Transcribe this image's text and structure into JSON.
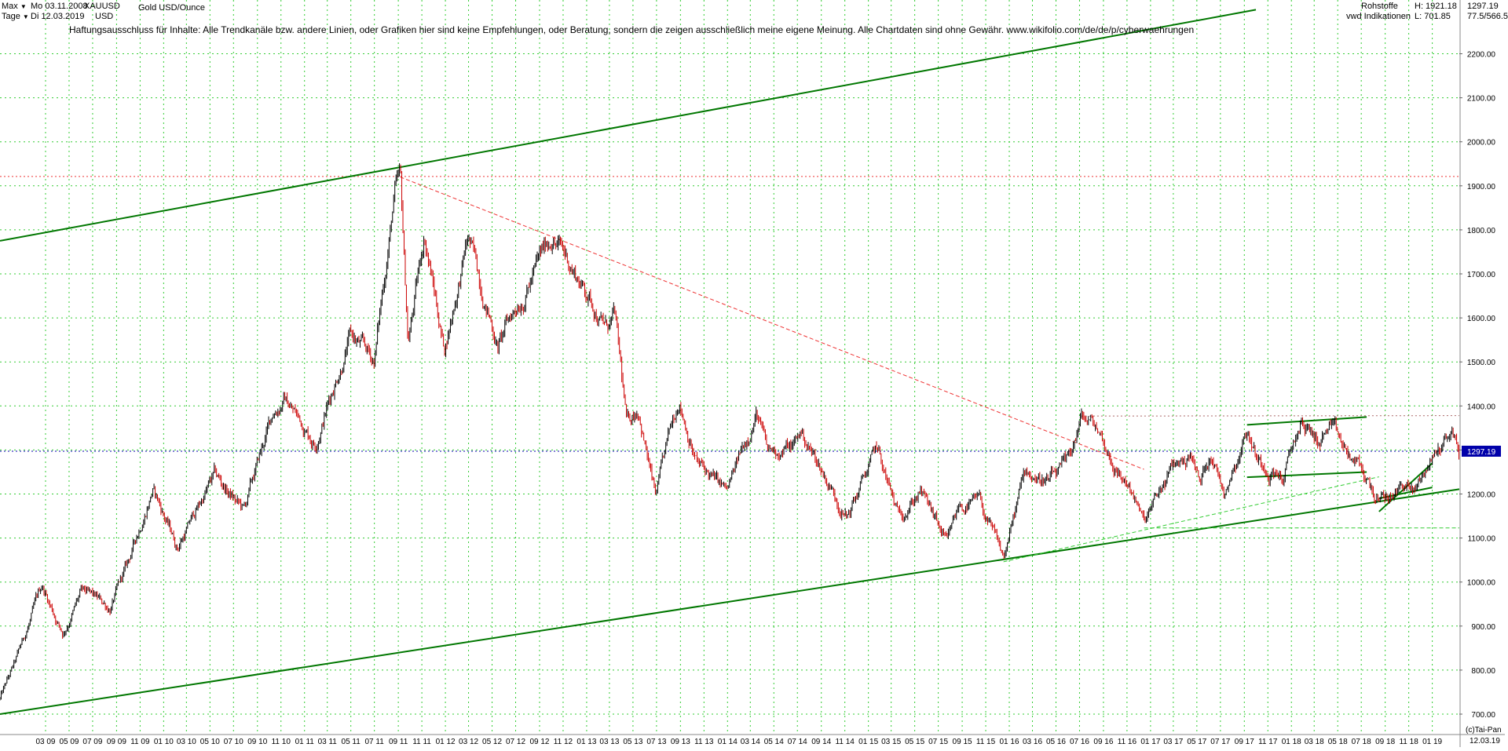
{
  "header": {
    "range_mode": "Max",
    "interval_mode": "Tage",
    "date_from": "Mo 03.11.2008",
    "date_to": "Di 12.03.2019",
    "symbol": "XAUUSD",
    "currency": "USD",
    "instrument": "Gold USD/Ounce",
    "category": "Rohstoffe",
    "source": "vwd Indikationen",
    "high_label": "H: 1921.18",
    "low_label": "L: 701.85",
    "last_value": "1297.19",
    "range_info": "77.5/566.5"
  },
  "disclaimer": "Haftungsausschluss für Inhalte: Alle Trendkanäle bzw. andere Linien, oder Grafiken hier sind keine Empfehlungen, oder Beratung, sondern die zeigen ausschließlich meine eigene Meinung. Alle Chartdaten sind ohne Gewähr.  www.wikifolio.com/de/de/p/cyberwaehrungen",
  "footer": {
    "copyright": "(c)Tai-Pan",
    "last_date": "12.03.19"
  },
  "colors": {
    "up": "#000000",
    "down": "#cc0000",
    "grid": "#33cc33",
    "trend": "#007700",
    "support": "#33cc33",
    "resistance_red": "#ee3333",
    "current_line": "#0000aa",
    "price_tag_bg": "#0000aa"
  },
  "chart_data": {
    "type": "line",
    "title": "Gold USD/Ounce",
    "ylabel": "USD",
    "xlabel": "",
    "ylim": [
      690,
      2300
    ],
    "y_ticks": [
      "700.00",
      "800.00",
      "900.00",
      "1000.00",
      "1100.00",
      "1200.00",
      "1300.00",
      "1400.00",
      "1500.00",
      "1600.00",
      "1700.00",
      "1800.00",
      "1900.00",
      "2000.00",
      "2100.00",
      "2200.00"
    ],
    "x_ticks": [
      "03 09",
      "05 09",
      "07 09",
      "09 09",
      "11 09",
      "01 10",
      "03 10",
      "05 10",
      "07 10",
      "09 10",
      "11 10",
      "01 11",
      "03 11",
      "05 11",
      "07 11",
      "09 11",
      "11 11",
      "01 12",
      "03 12",
      "05 12",
      "07 12",
      "09 12",
      "11 12",
      "01 13",
      "03 13",
      "05 13",
      "07 13",
      "09 13",
      "11 13",
      "01 14",
      "03 14",
      "05 14",
      "07 14",
      "09 14",
      "11 14",
      "01 15",
      "03 15",
      "05 15",
      "07 15",
      "09 15",
      "11 15",
      "01 16",
      "03 16",
      "05 16",
      "07 16",
      "09 16",
      "11 16",
      "01 17",
      "03 17",
      "05 17",
      "07 17",
      "09 17",
      "11 17",
      "01 18",
      "03 18",
      "05 18",
      "07 18",
      "09 18",
      "11 18",
      "01 19"
    ],
    "grid": true,
    "series": [
      {
        "name": "XAUUSD",
        "x": [
          "2008-11-03",
          "2008-12-15",
          "2009-02-20",
          "2009-04-15",
          "2009-06-01",
          "2009-08-15",
          "2009-10-01",
          "2009-12-03",
          "2010-02-05",
          "2010-05-12",
          "2010-07-28",
          "2010-10-10",
          "2010-11-09",
          "2011-01-28",
          "2011-04-29",
          "2011-06-30",
          "2011-08-22",
          "2011-09-06",
          "2011-09-26",
          "2011-11-08",
          "2011-12-29",
          "2012-02-29",
          "2012-05-16",
          "2012-06-29",
          "2012-10-05",
          "2012-12-31",
          "2013-02-20",
          "2013-03-15",
          "2013-04-15",
          "2013-05-15",
          "2013-06-28",
          "2013-08-28",
          "2013-10-15",
          "2013-12-31",
          "2014-03-17",
          "2014-04-15",
          "2014-06-20",
          "2014-07-10",
          "2014-09-30",
          "2014-11-07",
          "2015-01-22",
          "2015-03-17",
          "2015-05-15",
          "2015-07-24",
          "2015-08-24",
          "2015-10-15",
          "2015-12-17",
          "2016-02-11",
          "2016-04-15",
          "2016-05-30",
          "2016-07-06",
          "2016-08-15",
          "2016-10-07",
          "2016-11-15",
          "2016-12-15",
          "2017-02-28",
          "2017-04-17",
          "2017-05-09",
          "2017-06-06",
          "2017-07-10",
          "2017-09-08",
          "2017-10-06",
          "2017-12-12",
          "2018-01-25",
          "2018-03-12",
          "2018-04-11",
          "2018-05-21",
          "2018-07-03",
          "2018-08-16",
          "2018-09-28",
          "2018-10-26",
          "2018-11-13",
          "2018-12-31",
          "2019-01-31",
          "2019-02-20",
          "2019-03-12"
        ],
        "values": [
          735,
          820,
          990,
          885,
          975,
          940,
          1040,
          1215,
          1080,
          1240,
          1160,
          1380,
          1420,
          1320,
          1560,
          1500,
          1880,
          1910,
          1540,
          1790,
          1530,
          1780,
          1540,
          1620,
          1790,
          1660,
          1580,
          1600,
          1350,
          1400,
          1190,
          1420,
          1270,
          1200,
          1390,
          1290,
          1310,
          1340,
          1210,
          1150,
          1300,
          1150,
          1210,
          1080,
          1170,
          1180,
          1050,
          1250,
          1230,
          1260,
          1370,
          1350,
          1250,
          1210,
          1130,
          1260,
          1290,
          1220,
          1300,
          1210,
          1350,
          1280,
          1240,
          1360,
          1320,
          1350,
          1290,
          1250,
          1180,
          1200,
          1230,
          1200,
          1280,
          1320,
          1345,
          1297
        ]
      }
    ],
    "reference_lines": [
      {
        "kind": "horizontal",
        "value": 1921.18,
        "style": "dotted",
        "color": "#ee3333"
      },
      {
        "kind": "horizontal",
        "value": 1297.19,
        "style": "dotted",
        "color": "#0000aa"
      },
      {
        "kind": "trend",
        "x": [
          "2008-11-03",
          "2019-03-12"
        ],
        "y": [
          700,
          1211
        ],
        "color": "#007700"
      },
      {
        "kind": "trend",
        "x": [
          "2008-11-03",
          "2017-10-01"
        ],
        "y": [
          1775,
          2300
        ],
        "color": "#007700"
      },
      {
        "kind": "trend",
        "x": [
          "2011-09-06",
          "2016-12-15"
        ],
        "y": [
          1920,
          1256
        ],
        "color": "#ee3333",
        "style": "dashed"
      },
      {
        "kind": "trend",
        "x": [
          "2015-12-17",
          "2018-08-16"
        ],
        "y": [
          1046,
          1239
        ],
        "color": "#33cc33",
        "style": "dashed"
      },
      {
        "kind": "trend",
        "x": [
          "2016-07-06",
          "2019-03-12"
        ],
        "y": [
          1377,
          1378
        ],
        "color": "#aa6666",
        "style": "dotted"
      },
      {
        "kind": "trend",
        "x": [
          "2017-09-08",
          "2018-07-15"
        ],
        "y": [
          1357,
          1375
        ],
        "color": "#007700"
      },
      {
        "kind": "trend",
        "x": [
          "2017-09-08",
          "2018-07-15"
        ],
        "y": [
          1238,
          1250
        ],
        "color": "#007700"
      },
      {
        "kind": "trend",
        "x": [
          "2016-12-15",
          "2019-03-12"
        ],
        "y": [
          1123,
          1123
        ],
        "color": "#33cc33",
        "style": "dashed"
      },
      {
        "kind": "trend",
        "x": [
          "2018-08-16",
          "2019-01-01"
        ],
        "y": [
          1160,
          1270
        ],
        "color": "#007700"
      },
      {
        "kind": "trend",
        "x": [
          "2018-08-16",
          "2019-01-01"
        ],
        "y": [
          1190,
          1215
        ],
        "color": "#007700"
      }
    ]
  }
}
